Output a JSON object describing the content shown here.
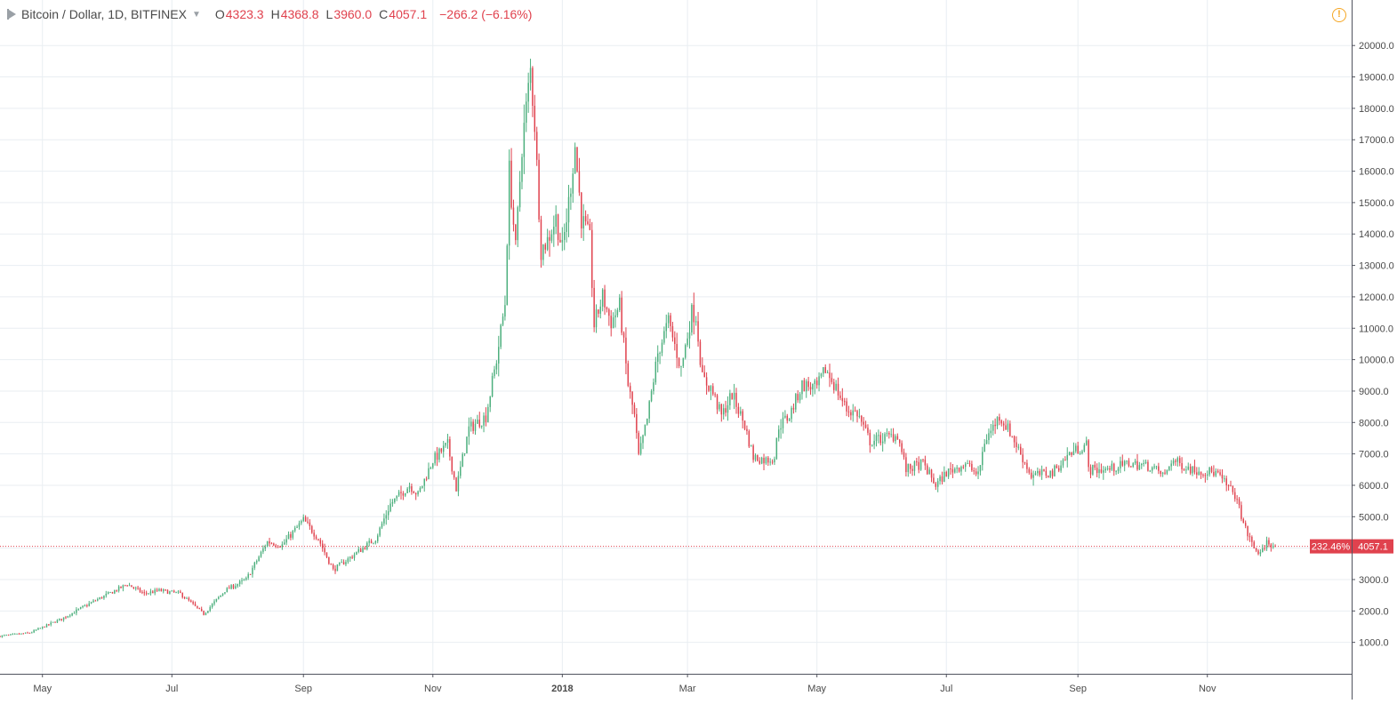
{
  "header": {
    "symbol": "Bitcoin / Dollar, 1D, BITFINEX",
    "o_label": "O",
    "o_value": "4323.3",
    "h_label": "H",
    "h_value": "4368.8",
    "l_label": "L",
    "l_value": "3960.0",
    "c_label": "C",
    "c_value": "4057.1",
    "change": "−266.2 (−6.16%)",
    "warning_icon": "!"
  },
  "price_tag": {
    "percent": "232.46%",
    "price": "4057.1"
  },
  "colors": {
    "up": "#4caf7d",
    "down": "#e0424e",
    "grid": "#e9eef2",
    "axis_text": "#4a4a4a",
    "price_line": "#e0424e"
  },
  "chart_data": {
    "type": "candlestick",
    "symbol": "BTCUSD",
    "timeframe": "1D",
    "y_ticks": [
      "1000.0",
      "2000.0",
      "3000.0",
      "4000.0",
      "5000.0",
      "6000.0",
      "7000.0",
      "8000.0",
      "9000.0",
      "10000.0",
      "11000.0",
      "12000.0",
      "13000.0",
      "14000.0",
      "15000.0",
      "16000.0",
      "17000.0",
      "18000.0",
      "19000.0",
      "20000.0"
    ],
    "x_ticks": [
      {
        "label": "May",
        "date": "2017-05-01"
      },
      {
        "label": "Jul",
        "date": "2017-07-01"
      },
      {
        "label": "Sep",
        "date": "2017-09-01"
      },
      {
        "label": "Nov",
        "date": "2017-11-01"
      },
      {
        "label": "2018",
        "date": "2018-01-01"
      },
      {
        "label": "Mar",
        "date": "2018-03-01"
      },
      {
        "label": "May",
        "date": "2018-05-01"
      },
      {
        "label": "Jul",
        "date": "2018-07-01"
      },
      {
        "label": "Sep",
        "date": "2018-09-01"
      },
      {
        "label": "Nov",
        "date": "2018-11-01"
      }
    ],
    "x_range": [
      "2017-04-11",
      "2019-01-08"
    ],
    "y_range": [
      0,
      20600
    ],
    "grid": true,
    "last_price": 4057.1,
    "close_path": [
      [
        "2017-04-11",
        1200
      ],
      [
        "2017-04-25",
        1300
      ],
      [
        "2017-05-10",
        1750
      ],
      [
        "2017-05-25",
        2300
      ],
      [
        "2017-06-10",
        2850
      ],
      [
        "2017-06-18",
        2550
      ],
      [
        "2017-06-25",
        2650
      ],
      [
        "2017-07-05",
        2550
      ],
      [
        "2017-07-16",
        1900
      ],
      [
        "2017-07-26",
        2650
      ],
      [
        "2017-08-05",
        3000
      ],
      [
        "2017-08-15",
        4200
      ],
      [
        "2017-08-22",
        4100
      ],
      [
        "2017-09-01",
        4900
      ],
      [
        "2017-09-08",
        4300
      ],
      [
        "2017-09-15",
        3300
      ],
      [
        "2017-09-25",
        3800
      ],
      [
        "2017-10-05",
        4300
      ],
      [
        "2017-10-12",
        5400
      ],
      [
        "2017-10-21",
        6000
      ],
      [
        "2017-10-25",
        5700
      ],
      [
        "2017-11-01",
        6800
      ],
      [
        "2017-11-08",
        7300
      ],
      [
        "2017-11-12",
        5900
      ],
      [
        "2017-11-18",
        7800
      ],
      [
        "2017-11-26",
        8200
      ],
      [
        "2017-12-01",
        10000
      ],
      [
        "2017-12-05",
        11800
      ],
      [
        "2017-12-07",
        16000
      ],
      [
        "2017-12-10",
        13500
      ],
      [
        "2017-12-13",
        16800
      ],
      [
        "2017-12-17",
        19200
      ],
      [
        "2017-12-19",
        17500
      ],
      [
        "2017-12-22",
        13500
      ],
      [
        "2017-12-25",
        13800
      ],
      [
        "2017-12-29",
        14500
      ],
      [
        "2018-01-01",
        13500
      ],
      [
        "2018-01-04",
        15000
      ],
      [
        "2018-01-07",
        16800
      ],
      [
        "2018-01-10",
        14500
      ],
      [
        "2018-01-14",
        13800
      ],
      [
        "2018-01-16",
        11100
      ],
      [
        "2018-01-20",
        12000
      ],
      [
        "2018-01-24",
        11200
      ],
      [
        "2018-01-28",
        11700
      ],
      [
        "2018-02-01",
        9200
      ],
      [
        "2018-02-04",
        8200
      ],
      [
        "2018-02-06",
        6900
      ],
      [
        "2018-02-10",
        8100
      ],
      [
        "2018-02-15",
        10200
      ],
      [
        "2018-02-20",
        11200
      ],
      [
        "2018-02-26",
        9700
      ],
      [
        "2018-03-03",
        11500
      ],
      [
        "2018-03-05",
        11400
      ],
      [
        "2018-03-08",
        9400
      ],
      [
        "2018-03-12",
        9100
      ],
      [
        "2018-03-17",
        8200
      ],
      [
        "2018-03-22",
        8900
      ],
      [
        "2018-03-28",
        7900
      ],
      [
        "2018-04-01",
        6900
      ],
      [
        "2018-04-07",
        6800
      ],
      [
        "2018-04-11",
        6900
      ],
      [
        "2018-04-13",
        7900
      ],
      [
        "2018-04-18",
        8200
      ],
      [
        "2018-04-24",
        9200
      ],
      [
        "2018-05-01",
        9100
      ],
      [
        "2018-05-05",
        9700
      ],
      [
        "2018-05-10",
        9100
      ],
      [
        "2018-05-15",
        8400
      ],
      [
        "2018-05-20",
        8300
      ],
      [
        "2018-05-26",
        7400
      ],
      [
        "2018-06-01",
        7500
      ],
      [
        "2018-06-08",
        7600
      ],
      [
        "2018-06-12",
        6500
      ],
      [
        "2018-06-20",
        6700
      ],
      [
        "2018-06-26",
        6000
      ],
      [
        "2018-07-01",
        6400
      ],
      [
        "2018-07-10",
        6700
      ],
      [
        "2018-07-16",
        6300
      ],
      [
        "2018-07-19",
        7400
      ],
      [
        "2018-07-26",
        8200
      ],
      [
        "2018-07-31",
        7700
      ],
      [
        "2018-08-05",
        7000
      ],
      [
        "2018-08-10",
        6300
      ],
      [
        "2018-08-20",
        6400
      ],
      [
        "2018-08-28",
        7000
      ],
      [
        "2018-09-05",
        7300
      ],
      [
        "2018-09-06",
        6500
      ],
      [
        "2018-09-15",
        6500
      ],
      [
        "2018-09-25",
        6700
      ],
      [
        "2018-10-05",
        6600
      ],
      [
        "2018-10-12",
        6300
      ],
      [
        "2018-10-15",
        6800
      ],
      [
        "2018-10-25",
        6500
      ],
      [
        "2018-11-05",
        6400
      ],
      [
        "2018-11-14",
        5700
      ],
      [
        "2018-11-19",
        4600
      ],
      [
        "2018-11-23",
        4000
      ],
      [
        "2018-11-26",
        3800
      ],
      [
        "2018-11-29",
        4200
      ],
      [
        "2018-12-03",
        4057.1
      ]
    ]
  }
}
